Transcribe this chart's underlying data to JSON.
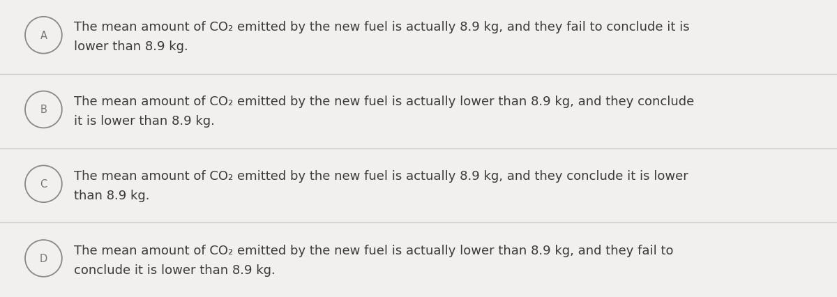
{
  "background_color": "#f2f0ee",
  "line_color": "#c8c8c8",
  "text_color": "#3a3a3a",
  "circle_edge_color": "#888888",
  "label_color": "#777777",
  "font_size": 13.0,
  "label_font_size": 10.5,
  "options": [
    {
      "label": "A",
      "line1": "The mean amount of CO₂ emitted by the new fuel is actually 8.9 kg, and they fail to conclude it is",
      "line2": "lower than 8.9 kg."
    },
    {
      "label": "B",
      "line1": "The mean amount of CO₂ emitted by the new fuel is actually lower than 8.9 kg, and they conclude",
      "line2": "it is lower than 8.9 kg."
    },
    {
      "label": "C",
      "line1": "The mean amount of CO₂ emitted by the new fuel is actually 8.9 kg, and they conclude it is lower",
      "line2": "than 8.9 kg."
    },
    {
      "label": "D",
      "line1": "The mean amount of CO₂ emitted by the new fuel is actually lower than 8.9 kg, and they fail to",
      "line2": "conclude it is lower than 8.9 kg."
    }
  ],
  "fig_width": 12.0,
  "fig_height": 4.27,
  "dpi": 100
}
